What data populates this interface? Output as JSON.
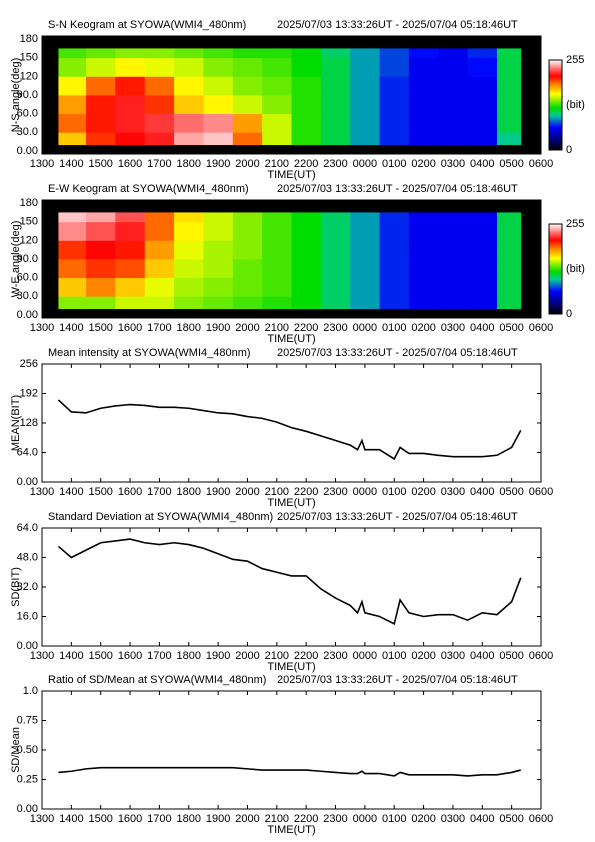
{
  "chart_data": [
    {
      "type": "heatmap",
      "title": "S-N Keogram at SYOWA(WMI4_480nm)",
      "subtitle": "2025/07/03 13:33:26UT - 2025/07/04 05:18:46UT",
      "xlabel": "TIME(UT)",
      "ylabel": "N-S angle(deg)",
      "xlim": [
        13,
        30
      ],
      "xticks": [
        {
          "value": 13,
          "label": "1300"
        },
        {
          "value": 14,
          "label": "1400"
        },
        {
          "value": 15,
          "label": "1500"
        },
        {
          "value": 16,
          "label": "1600"
        },
        {
          "value": 17,
          "label": "1700"
        },
        {
          "value": 18,
          "label": "1800"
        },
        {
          "value": 19,
          "label": "1900"
        },
        {
          "value": 20,
          "label": "2000"
        },
        {
          "value": 21,
          "label": "2100"
        },
        {
          "value": 22,
          "label": "2200"
        },
        {
          "value": 23,
          "label": "2300"
        },
        {
          "value": 24,
          "label": "0000"
        },
        {
          "value": 25,
          "label": "0100"
        },
        {
          "value": 26,
          "label": "0200"
        },
        {
          "value": 27,
          "label": "0300"
        },
        {
          "value": 28,
          "label": "0400"
        },
        {
          "value": 29,
          "label": "0500"
        },
        {
          "value": 30,
          "label": "0600"
        }
      ],
      "ylim": [
        -5,
        185
      ],
      "yticks": [
        {
          "value": 0,
          "label": "0.00"
        },
        {
          "value": 30,
          "label": "30.0"
        },
        {
          "value": 60,
          "label": "60.0"
        },
        {
          "value": 90,
          "label": "90.0"
        },
        120,
        150,
        180
      ],
      "x_edges": [
        13.56,
        14.5,
        15.5,
        16.5,
        17.5,
        18.5,
        19.5,
        20.5,
        21.5,
        22.5,
        23.5,
        24.5,
        25.5,
        26.5,
        27.5,
        28.5,
        29.31
      ],
      "y_edges": [
        10,
        30,
        60,
        90,
        120,
        150,
        165
      ],
      "z": [
        [
          170,
          200,
          210,
          215,
          240,
          245,
          190,
          150,
          125,
          110,
          90,
          70,
          60,
          60,
          60,
          100
        ],
        [
          190,
          205,
          215,
          220,
          230,
          235,
          180,
          150,
          125,
          110,
          90,
          70,
          60,
          60,
          60,
          110
        ],
        [
          180,
          205,
          215,
          200,
          170,
          160,
          150,
          140,
          125,
          110,
          90,
          70,
          60,
          60,
          60,
          110
        ],
        [
          160,
          190,
          205,
          190,
          160,
          150,
          140,
          135,
          125,
          110,
          90,
          70,
          60,
          60,
          60,
          110
        ],
        [
          140,
          150,
          160,
          155,
          150,
          140,
          135,
          130,
          120,
          110,
          90,
          75,
          60,
          60,
          65,
          110
        ],
        [
          130,
          135,
          140,
          140,
          135,
          130,
          125,
          125,
          120,
          105,
          90,
          75,
          65,
          60,
          70,
          110
        ]
      ],
      "zlim": [
        0,
        255
      ],
      "zticks": [
        0,
        255
      ],
      "zlabel": "(bit)"
    },
    {
      "type": "heatmap",
      "title": "E-W Keogram at SYOWA(WMI4_480nm)",
      "subtitle": "2025/07/03 13:33:26UT - 2025/07/04 05:18:46UT",
      "xlabel": "TIME(UT)",
      "ylabel": "W-E angle(deg)",
      "xlim": [
        13,
        30
      ],
      "xticks": [
        {
          "value": 13,
          "label": "1300"
        },
        {
          "value": 14,
          "label": "1400"
        },
        {
          "value": 15,
          "label": "1500"
        },
        {
          "value": 16,
          "label": "1600"
        },
        {
          "value": 17,
          "label": "1700"
        },
        {
          "value": 18,
          "label": "1800"
        },
        {
          "value": 19,
          "label": "1900"
        },
        {
          "value": 20,
          "label": "2000"
        },
        {
          "value": 21,
          "label": "2100"
        },
        {
          "value": 22,
          "label": "2200"
        },
        {
          "value": 23,
          "label": "2300"
        },
        {
          "value": 24,
          "label": "0000"
        },
        {
          "value": 25,
          "label": "0100"
        },
        {
          "value": 26,
          "label": "0200"
        },
        {
          "value": 27,
          "label": "0300"
        },
        {
          "value": 28,
          "label": "0400"
        },
        {
          "value": 29,
          "label": "0500"
        },
        {
          "value": 30,
          "label": "0600"
        }
      ],
      "ylim": [
        -5,
        185
      ],
      "yticks": [
        {
          "value": 0,
          "label": "0.00"
        },
        {
          "value": 30,
          "label": "30.0"
        },
        {
          "value": 60,
          "label": "60.0"
        },
        {
          "value": 90,
          "label": "90.0"
        },
        120,
        150,
        180
      ],
      "x_edges": [
        13.56,
        14.5,
        15.5,
        16.5,
        17.5,
        18.5,
        19.5,
        20.5,
        21.5,
        22.5,
        23.5,
        24.5,
        25.5,
        26.5,
        27.5,
        28.5,
        29.31
      ],
      "y_edges": [
        10,
        30,
        60,
        90,
        120,
        150,
        165
      ],
      "z": [
        [
          140,
          140,
          150,
          150,
          140,
          135,
          130,
          125,
          120,
          105,
          90,
          70,
          60,
          60,
          60,
          110
        ],
        [
          170,
          185,
          170,
          155,
          145,
          140,
          135,
          130,
          120,
          105,
          90,
          70,
          60,
          60,
          60,
          110
        ],
        [
          190,
          200,
          195,
          170,
          150,
          145,
          135,
          130,
          120,
          105,
          90,
          70,
          60,
          60,
          60,
          110
        ],
        [
          200,
          210,
          205,
          180,
          155,
          145,
          140,
          130,
          120,
          105,
          90,
          70,
          60,
          60,
          60,
          110
        ],
        [
          235,
          225,
          215,
          190,
          160,
          150,
          140,
          130,
          120,
          105,
          90,
          70,
          60,
          60,
          60,
          110
        ],
        [
          245,
          240,
          225,
          190,
          165,
          150,
          140,
          130,
          120,
          105,
          90,
          70,
          60,
          60,
          60,
          110
        ]
      ],
      "zlim": [
        0,
        255
      ],
      "zticks": [
        0,
        255
      ],
      "zlabel": "(bit)"
    },
    {
      "type": "line",
      "title": "Mean intensity at SYOWA(WMI4_480nm)",
      "subtitle": "2025/07/03 13:33:26UT - 2025/07/04 05:18:46UT",
      "xlabel": "TIME(UT)",
      "ylabel": "MEAN(BIT)",
      "color": "#000000",
      "xlim": [
        13,
        30
      ],
      "xticks": [
        {
          "value": 13,
          "label": "1300"
        },
        {
          "value": 14,
          "label": "1400"
        },
        {
          "value": 15,
          "label": "1500"
        },
        {
          "value": 16,
          "label": "1600"
        },
        {
          "value": 17,
          "label": "1700"
        },
        {
          "value": 18,
          "label": "1800"
        },
        {
          "value": 19,
          "label": "1900"
        },
        {
          "value": 20,
          "label": "2000"
        },
        {
          "value": 21,
          "label": "2100"
        },
        {
          "value": 22,
          "label": "2200"
        },
        {
          "value": 23,
          "label": "2300"
        },
        {
          "value": 24,
          "label": "0000"
        },
        {
          "value": 25,
          "label": "0100"
        },
        {
          "value": 26,
          "label": "0200"
        },
        {
          "value": 27,
          "label": "0300"
        },
        {
          "value": 28,
          "label": "0400"
        },
        {
          "value": 29,
          "label": "0500"
        },
        {
          "value": 30,
          "label": "0600"
        }
      ],
      "ylim": [
        0,
        256
      ],
      "yticks": [
        {
          "value": 0,
          "label": "0.00"
        },
        {
          "value": 64,
          "label": "64.0"
        },
        128,
        192,
        256
      ],
      "x": [
        13.56,
        14.0,
        14.5,
        15.0,
        15.5,
        16.0,
        16.5,
        17.0,
        17.5,
        18.0,
        18.5,
        19.0,
        19.5,
        20.0,
        20.5,
        21.0,
        21.5,
        22.0,
        22.5,
        23.0,
        23.5,
        23.75,
        23.9,
        24.0,
        24.5,
        25.0,
        25.2,
        25.5,
        26.0,
        26.5,
        27.0,
        27.5,
        28.0,
        28.5,
        29.0,
        29.31
      ],
      "values": [
        178,
        152,
        150,
        160,
        165,
        168,
        166,
        162,
        162,
        160,
        155,
        150,
        148,
        142,
        138,
        130,
        118,
        110,
        100,
        90,
        80,
        70,
        90,
        70,
        70,
        50,
        75,
        62,
        62,
        58,
        55,
        55,
        55,
        58,
        75,
        112
      ]
    },
    {
      "type": "line",
      "title": "Standard Deviation at SYOWA(WMI4_480nm)",
      "subtitle": "2025/07/03 13:33:26UT - 2025/07/04 05:18:46UT",
      "xlabel": "TIME(UT)",
      "ylabel": "SD(BIT)",
      "color": "#000000",
      "xlim": [
        13,
        30
      ],
      "xticks": [
        {
          "value": 13,
          "label": "1300"
        },
        {
          "value": 14,
          "label": "1400"
        },
        {
          "value": 15,
          "label": "1500"
        },
        {
          "value": 16,
          "label": "1600"
        },
        {
          "value": 17,
          "label": "1700"
        },
        {
          "value": 18,
          "label": "1800"
        },
        {
          "value": 19,
          "label": "1900"
        },
        {
          "value": 20,
          "label": "2000"
        },
        {
          "value": 21,
          "label": "2100"
        },
        {
          "value": 22,
          "label": "2200"
        },
        {
          "value": 23,
          "label": "2300"
        },
        {
          "value": 24,
          "label": "0000"
        },
        {
          "value": 25,
          "label": "0100"
        },
        {
          "value": 26,
          "label": "0200"
        },
        {
          "value": 27,
          "label": "0300"
        },
        {
          "value": 28,
          "label": "0400"
        },
        {
          "value": 29,
          "label": "0500"
        },
        {
          "value": 30,
          "label": "0600"
        }
      ],
      "ylim": [
        0,
        64
      ],
      "yticks": [
        {
          "value": 0,
          "label": "0.00"
        },
        {
          "value": 16,
          "label": "16.0"
        },
        {
          "value": 32,
          "label": "32.0"
        },
        {
          "value": 48,
          "label": "48.0"
        },
        {
          "value": 64,
          "label": "64.0"
        }
      ],
      "x": [
        13.56,
        14.0,
        14.5,
        15.0,
        15.5,
        16.0,
        16.5,
        17.0,
        17.5,
        18.0,
        18.5,
        19.0,
        19.5,
        20.0,
        20.5,
        21.0,
        21.5,
        22.0,
        22.5,
        23.0,
        23.5,
        23.75,
        23.9,
        24.0,
        24.5,
        25.0,
        25.2,
        25.5,
        26.0,
        26.5,
        27.0,
        27.5,
        28.0,
        28.5,
        29.0,
        29.31
      ],
      "values": [
        54,
        48,
        52,
        56,
        57,
        58,
        56,
        55,
        56,
        55,
        53,
        50,
        47,
        46,
        42,
        40,
        38,
        38,
        31,
        26,
        22,
        18,
        24,
        18,
        16,
        12,
        25,
        18,
        16,
        17,
        17,
        14,
        18,
        17,
        24,
        37
      ]
    },
    {
      "type": "line",
      "title": "Ratio of SD/Mean at SYOWA(WMI4_480nm)",
      "subtitle": "2025/07/03 13:33:26UT - 2025/07/04 05:18:46UT",
      "xlabel": "TIME(UT)",
      "ylabel": "SD/Mean",
      "color": "#000000",
      "xlim": [
        13,
        30
      ],
      "xticks": [
        {
          "value": 13,
          "label": "1300"
        },
        {
          "value": 14,
          "label": "1400"
        },
        {
          "value": 15,
          "label": "1500"
        },
        {
          "value": 16,
          "label": "1600"
        },
        {
          "value": 17,
          "label": "1700"
        },
        {
          "value": 18,
          "label": "1800"
        },
        {
          "value": 19,
          "label": "1900"
        },
        {
          "value": 20,
          "label": "2000"
        },
        {
          "value": 21,
          "label": "2100"
        },
        {
          "value": 22,
          "label": "2200"
        },
        {
          "value": 23,
          "label": "2300"
        },
        {
          "value": 24,
          "label": "0000"
        },
        {
          "value": 25,
          "label": "0100"
        },
        {
          "value": 26,
          "label": "0200"
        },
        {
          "value": 27,
          "label": "0300"
        },
        {
          "value": 28,
          "label": "0400"
        },
        {
          "value": 29,
          "label": "0500"
        },
        {
          "value": 30,
          "label": "0600"
        }
      ],
      "ylim": [
        0,
        1
      ],
      "yticks": [
        {
          "value": 0,
          "label": "0.00"
        },
        0.25,
        {
          "value": 0.5,
          "label": "0.50"
        },
        0.75,
        {
          "value": 1,
          "label": "1.0"
        }
      ],
      "x": [
        13.56,
        14.0,
        14.5,
        15.0,
        15.5,
        16.0,
        16.5,
        17.0,
        17.5,
        18.0,
        18.5,
        19.0,
        19.5,
        20.0,
        20.5,
        21.0,
        21.5,
        22.0,
        22.5,
        23.0,
        23.5,
        23.75,
        23.9,
        24.0,
        24.5,
        25.0,
        25.2,
        25.5,
        26.0,
        26.5,
        27.0,
        27.5,
        28.0,
        28.5,
        29.0,
        29.31
      ],
      "values": [
        0.31,
        0.32,
        0.34,
        0.35,
        0.35,
        0.35,
        0.35,
        0.35,
        0.35,
        0.35,
        0.35,
        0.35,
        0.35,
        0.34,
        0.33,
        0.33,
        0.33,
        0.33,
        0.32,
        0.31,
        0.3,
        0.3,
        0.32,
        0.3,
        0.3,
        0.28,
        0.31,
        0.29,
        0.29,
        0.29,
        0.29,
        0.28,
        0.29,
        0.29,
        0.31,
        0.33
      ]
    }
  ]
}
